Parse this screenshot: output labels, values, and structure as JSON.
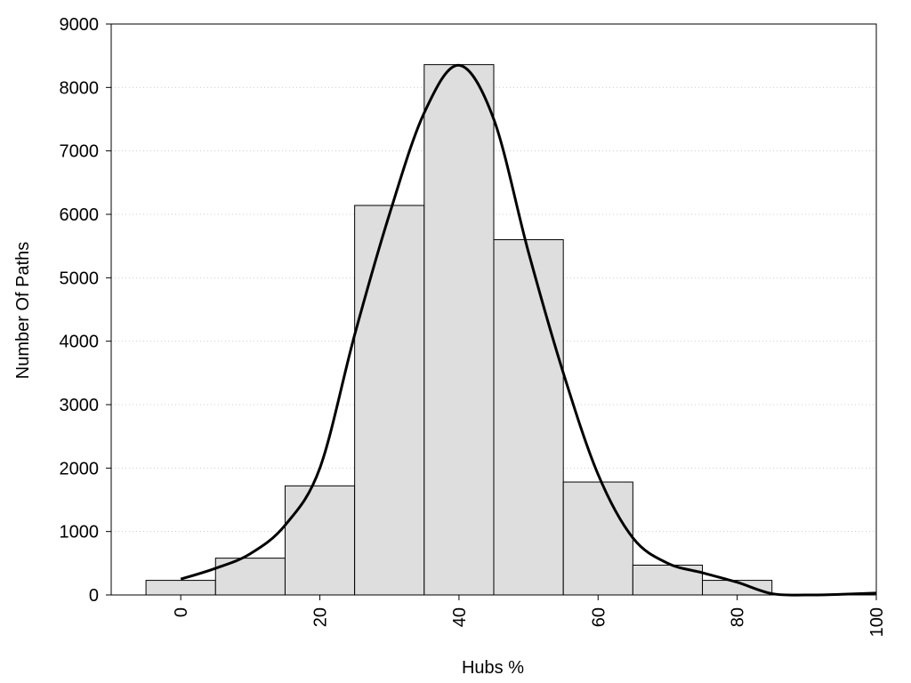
{
  "chart_data": {
    "type": "bar",
    "title": "",
    "xlabel": "Hubs %",
    "ylabel": "Number Of Paths",
    "xlim": [
      -10,
      100
    ],
    "ylim": [
      0,
      9000
    ],
    "x_ticks": [
      0,
      20,
      40,
      60,
      80,
      100
    ],
    "y_ticks": [
      0,
      1000,
      2000,
      3000,
      4000,
      5000,
      6000,
      7000,
      8000,
      9000
    ],
    "grid": "horizontal-dotted",
    "bin_width": 10,
    "bars": [
      {
        "x": 0,
        "value": 230
      },
      {
        "x": 10,
        "value": 580
      },
      {
        "x": 20,
        "value": 1720
      },
      {
        "x": 30,
        "value": 6140
      },
      {
        "x": 40,
        "value": 8360
      },
      {
        "x": 50,
        "value": 5600
      },
      {
        "x": 60,
        "value": 1780
      },
      {
        "x": 70,
        "value": 470
      },
      {
        "x": 80,
        "value": 230
      },
      {
        "x": 90,
        "value": 0
      },
      {
        "x": 100,
        "value": 0
      }
    ],
    "density_curve": {
      "x": [
        0,
        5,
        10,
        15,
        20,
        25,
        30,
        35,
        40,
        45,
        50,
        55,
        60,
        65,
        70,
        75,
        80,
        85,
        90,
        95,
        100
      ],
      "y": [
        250,
        420,
        650,
        1100,
        2000,
        4100,
        6000,
        7600,
        8350,
        7500,
        5400,
        3500,
        1900,
        900,
        500,
        350,
        200,
        20,
        0,
        10,
        30
      ]
    },
    "bar_fill": "#dedede",
    "bar_stroke": "#000000",
    "curve_color": "#000000",
    "grid_color": "#cccccc"
  }
}
